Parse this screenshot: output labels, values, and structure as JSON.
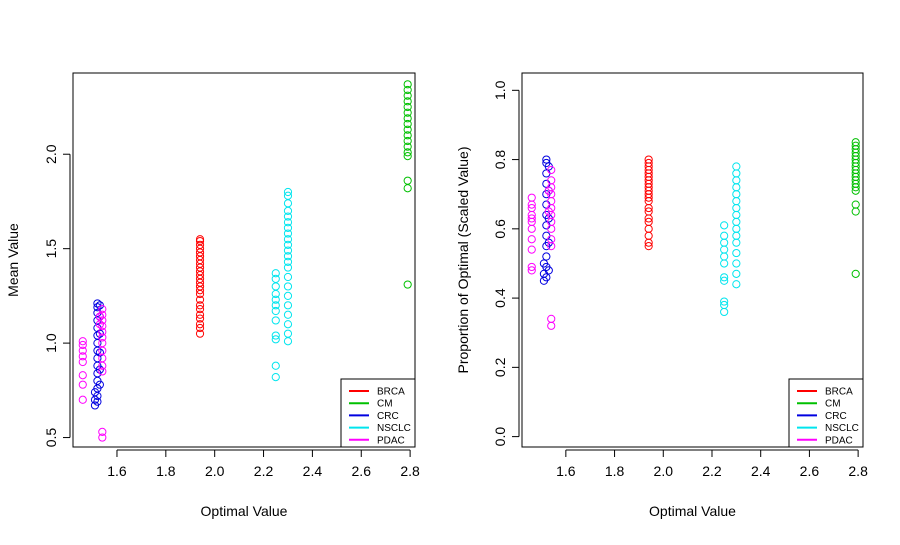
{
  "chart_data": [
    {
      "type": "scatter",
      "xlabel": "Optimal Value",
      "ylabel": "Mean Value",
      "xlim": [
        1.42,
        2.82
      ],
      "ylim": [
        0.45,
        2.43
      ],
      "xticks": [
        "1.6",
        "1.8",
        "2.0",
        "2.2",
        "2.4",
        "2.6",
        "2.8"
      ],
      "yticks": [
        "0.5",
        "1.0",
        "1.5",
        "2.0"
      ],
      "legend_position": "bottom-right",
      "series": [
        {
          "name": "BRCA",
          "color": "#ff0000",
          "points": [
            [
              1.94,
              1.05
            ],
            [
              1.94,
              1.08
            ],
            [
              1.94,
              1.1
            ],
            [
              1.94,
              1.13
            ],
            [
              1.94,
              1.15
            ],
            [
              1.94,
              1.18
            ],
            [
              1.94,
              1.2
            ],
            [
              1.94,
              1.23
            ],
            [
              1.94,
              1.26
            ],
            [
              1.94,
              1.28
            ],
            [
              1.94,
              1.3
            ],
            [
              1.94,
              1.32
            ],
            [
              1.94,
              1.34
            ],
            [
              1.94,
              1.36
            ],
            [
              1.94,
              1.38
            ],
            [
              1.94,
              1.4
            ],
            [
              1.94,
              1.42
            ],
            [
              1.94,
              1.44
            ],
            [
              1.94,
              1.46
            ],
            [
              1.94,
              1.48
            ],
            [
              1.94,
              1.5
            ],
            [
              1.94,
              1.52
            ],
            [
              1.94,
              1.54
            ],
            [
              1.94,
              1.55
            ]
          ]
        },
        {
          "name": "CM",
          "color": "#00c000",
          "points": [
            [
              2.79,
              1.31
            ],
            [
              2.79,
              1.82
            ],
            [
              2.79,
              1.86
            ],
            [
              2.79,
              1.99
            ],
            [
              2.79,
              2.01
            ],
            [
              2.79,
              2.04
            ],
            [
              2.79,
              2.07
            ],
            [
              2.79,
              2.1
            ],
            [
              2.79,
              2.13
            ],
            [
              2.79,
              2.16
            ],
            [
              2.79,
              2.19
            ],
            [
              2.79,
              2.22
            ],
            [
              2.79,
              2.25
            ],
            [
              2.79,
              2.28
            ],
            [
              2.79,
              2.31
            ],
            [
              2.79,
              2.34
            ],
            [
              2.79,
              2.37
            ]
          ]
        },
        {
          "name": "CRC",
          "color": "#0000e0",
          "points": [
            [
              1.51,
              0.67
            ],
            [
              1.51,
              0.7
            ],
            [
              1.51,
              0.74
            ],
            [
              1.52,
              0.69
            ],
            [
              1.52,
              0.72
            ],
            [
              1.52,
              0.76
            ],
            [
              1.52,
              0.8
            ],
            [
              1.52,
              0.84
            ],
            [
              1.52,
              0.88
            ],
            [
              1.52,
              0.92
            ],
            [
              1.52,
              0.96
            ],
            [
              1.52,
              1.0
            ],
            [
              1.52,
              1.04
            ],
            [
              1.52,
              1.08
            ],
            [
              1.52,
              1.12
            ],
            [
              1.52,
              1.16
            ],
            [
              1.52,
              1.19
            ],
            [
              1.52,
              1.21
            ],
            [
              1.53,
              0.78
            ],
            [
              1.53,
              0.86
            ],
            [
              1.53,
              0.95
            ],
            [
              1.53,
              1.05
            ],
            [
              1.53,
              1.14
            ],
            [
              1.53,
              1.2
            ]
          ]
        },
        {
          "name": "NSCLC",
          "color": "#00e5ee",
          "points": [
            [
              2.25,
              0.82
            ],
            [
              2.25,
              0.88
            ],
            [
              2.25,
              1.02
            ],
            [
              2.25,
              1.04
            ],
            [
              2.25,
              1.12
            ],
            [
              2.25,
              1.17
            ],
            [
              2.25,
              1.2
            ],
            [
              2.25,
              1.23
            ],
            [
              2.25,
              1.26
            ],
            [
              2.25,
              1.3
            ],
            [
              2.25,
              1.34
            ],
            [
              2.25,
              1.37
            ],
            [
              2.3,
              1.01
            ],
            [
              2.3,
              1.05
            ],
            [
              2.3,
              1.1
            ],
            [
              2.3,
              1.15
            ],
            [
              2.3,
              1.2
            ],
            [
              2.3,
              1.25
            ],
            [
              2.3,
              1.3
            ],
            [
              2.3,
              1.35
            ],
            [
              2.3,
              1.4
            ],
            [
              2.3,
              1.43
            ],
            [
              2.3,
              1.46
            ],
            [
              2.3,
              1.49
            ],
            [
              2.3,
              1.52
            ],
            [
              2.3,
              1.55
            ],
            [
              2.3,
              1.58
            ],
            [
              2.3,
              1.61
            ],
            [
              2.3,
              1.64
            ],
            [
              2.3,
              1.67
            ],
            [
              2.3,
              1.7
            ],
            [
              2.3,
              1.74
            ],
            [
              2.3,
              1.78
            ],
            [
              2.3,
              1.8
            ]
          ]
        },
        {
          "name": "PDAC",
          "color": "#ff00ff",
          "points": [
            [
              1.46,
              0.7
            ],
            [
              1.46,
              0.78
            ],
            [
              1.46,
              0.83
            ],
            [
              1.46,
              0.9
            ],
            [
              1.46,
              0.93
            ],
            [
              1.46,
              0.96
            ],
            [
              1.46,
              0.99
            ],
            [
              1.46,
              1.01
            ],
            [
              1.54,
              0.5
            ],
            [
              1.54,
              0.53
            ],
            [
              1.54,
              0.85
            ],
            [
              1.54,
              0.88
            ],
            [
              1.54,
              0.92
            ],
            [
              1.54,
              0.96
            ],
            [
              1.54,
              1.0
            ],
            [
              1.54,
              1.03
            ],
            [
              1.54,
              1.06
            ],
            [
              1.54,
              1.09
            ],
            [
              1.54,
              1.12
            ],
            [
              1.54,
              1.15
            ],
            [
              1.54,
              1.18
            ],
            [
              1.53,
              1.1
            ],
            [
              1.53,
              1.14
            ]
          ]
        }
      ]
    },
    {
      "type": "scatter",
      "xlabel": "Optimal Value",
      "ylabel": "Proportion of Optimal (Scaled Value)",
      "xlim": [
        1.42,
        2.82
      ],
      "ylim": [
        -0.03,
        1.05
      ],
      "xticks": [
        "1.6",
        "1.8",
        "2.0",
        "2.2",
        "2.4",
        "2.6",
        "2.8"
      ],
      "yticks": [
        "0.0",
        "0.2",
        "0.4",
        "0.6",
        "0.8",
        "1.0"
      ],
      "legend_position": "bottom-right",
      "series": [
        {
          "name": "BRCA",
          "color": "#ff0000",
          "points": [
            [
              1.94,
              0.55
            ],
            [
              1.94,
              0.56
            ],
            [
              1.94,
              0.58
            ],
            [
              1.94,
              0.6
            ],
            [
              1.94,
              0.62
            ],
            [
              1.94,
              0.63
            ],
            [
              1.94,
              0.65
            ],
            [
              1.94,
              0.66
            ],
            [
              1.94,
              0.68
            ],
            [
              1.94,
              0.69
            ],
            [
              1.94,
              0.7
            ],
            [
              1.94,
              0.71
            ],
            [
              1.94,
              0.72
            ],
            [
              1.94,
              0.73
            ],
            [
              1.94,
              0.74
            ],
            [
              1.94,
              0.75
            ],
            [
              1.94,
              0.76
            ],
            [
              1.94,
              0.77
            ],
            [
              1.94,
              0.78
            ],
            [
              1.94,
              0.79
            ],
            [
              1.94,
              0.8
            ]
          ]
        },
        {
          "name": "CM",
          "color": "#00c000",
          "points": [
            [
              2.79,
              0.47
            ],
            [
              2.79,
              0.65
            ],
            [
              2.79,
              0.67
            ],
            [
              2.79,
              0.71
            ],
            [
              2.79,
              0.72
            ],
            [
              2.79,
              0.73
            ],
            [
              2.79,
              0.74
            ],
            [
              2.79,
              0.75
            ],
            [
              2.79,
              0.76
            ],
            [
              2.79,
              0.77
            ],
            [
              2.79,
              0.78
            ],
            [
              2.79,
              0.79
            ],
            [
              2.79,
              0.8
            ],
            [
              2.79,
              0.81
            ],
            [
              2.79,
              0.82
            ],
            [
              2.79,
              0.83
            ],
            [
              2.79,
              0.84
            ],
            [
              2.79,
              0.85
            ]
          ]
        },
        {
          "name": "CRC",
          "color": "#0000e0",
          "points": [
            [
              1.51,
              0.45
            ],
            [
              1.51,
              0.47
            ],
            [
              1.51,
              0.5
            ],
            [
              1.52,
              0.46
            ],
            [
              1.52,
              0.49
            ],
            [
              1.52,
              0.52
            ],
            [
              1.52,
              0.55
            ],
            [
              1.52,
              0.58
            ],
            [
              1.52,
              0.61
            ],
            [
              1.52,
              0.64
            ],
            [
              1.52,
              0.67
            ],
            [
              1.52,
              0.7
            ],
            [
              1.52,
              0.73
            ],
            [
              1.52,
              0.76
            ],
            [
              1.52,
              0.79
            ],
            [
              1.52,
              0.8
            ],
            [
              1.53,
              0.48
            ],
            [
              1.53,
              0.56
            ],
            [
              1.53,
              0.63
            ],
            [
              1.53,
              0.71
            ],
            [
              1.53,
              0.78
            ]
          ]
        },
        {
          "name": "NSCLC",
          "color": "#00e5ee",
          "points": [
            [
              2.25,
              0.36
            ],
            [
              2.25,
              0.38
            ],
            [
              2.25,
              0.39
            ],
            [
              2.25,
              0.45
            ],
            [
              2.25,
              0.46
            ],
            [
              2.25,
              0.5
            ],
            [
              2.25,
              0.52
            ],
            [
              2.25,
              0.54
            ],
            [
              2.25,
              0.56
            ],
            [
              2.25,
              0.58
            ],
            [
              2.25,
              0.61
            ],
            [
              2.3,
              0.44
            ],
            [
              2.3,
              0.47
            ],
            [
              2.3,
              0.5
            ],
            [
              2.3,
              0.53
            ],
            [
              2.3,
              0.56
            ],
            [
              2.3,
              0.58
            ],
            [
              2.3,
              0.6
            ],
            [
              2.3,
              0.62
            ],
            [
              2.3,
              0.64
            ],
            [
              2.3,
              0.66
            ],
            [
              2.3,
              0.68
            ],
            [
              2.3,
              0.7
            ],
            [
              2.3,
              0.72
            ],
            [
              2.3,
              0.74
            ],
            [
              2.3,
              0.76
            ],
            [
              2.3,
              0.78
            ]
          ]
        },
        {
          "name": "PDAC",
          "color": "#ff00ff",
          "points": [
            [
              1.46,
              0.48
            ],
            [
              1.46,
              0.49
            ],
            [
              1.46,
              0.54
            ],
            [
              1.46,
              0.57
            ],
            [
              1.46,
              0.6
            ],
            [
              1.46,
              0.62
            ],
            [
              1.46,
              0.63
            ],
            [
              1.46,
              0.64
            ],
            [
              1.46,
              0.66
            ],
            [
              1.46,
              0.67
            ],
            [
              1.46,
              0.69
            ],
            [
              1.54,
              0.32
            ],
            [
              1.54,
              0.34
            ],
            [
              1.54,
              0.55
            ],
            [
              1.54,
              0.57
            ],
            [
              1.54,
              0.6
            ],
            [
              1.54,
              0.62
            ],
            [
              1.54,
              0.64
            ],
            [
              1.54,
              0.66
            ],
            [
              1.54,
              0.68
            ],
            [
              1.54,
              0.7
            ],
            [
              1.54,
              0.72
            ],
            [
              1.54,
              0.74
            ],
            [
              1.54,
              0.77
            ],
            [
              1.53,
              0.65
            ],
            [
              1.53,
              0.71
            ]
          ]
        }
      ]
    }
  ]
}
